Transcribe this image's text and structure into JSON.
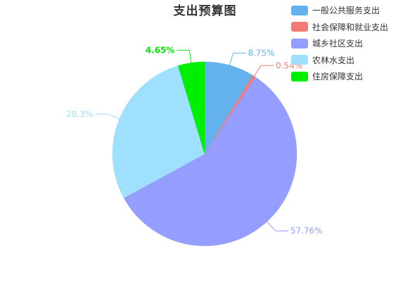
{
  "chart_data": {
    "type": "pie",
    "title": "支出预算图",
    "series": [
      {
        "name": "一般公共服务支出",
        "value": 8.75,
        "label": "8.75%",
        "color": "#63b2ee"
      },
      {
        "name": "社会保障和就业支出",
        "value": 0.54,
        "label": "0.54%",
        "color": "#f47a75"
      },
      {
        "name": "城乡社区支出",
        "value": 57.76,
        "label": "57.76%",
        "color": "#959eff"
      },
      {
        "name": "农林水支出",
        "value": 28.3,
        "label": "28.3%",
        "color": "#9fe0ff"
      },
      {
        "name": "住房保障支出",
        "value": 4.65,
        "label": "4.65%",
        "color": "#00ee00"
      }
    ],
    "legend_position": "top-right",
    "start": "12 o'clock",
    "direction": "clockwise"
  }
}
